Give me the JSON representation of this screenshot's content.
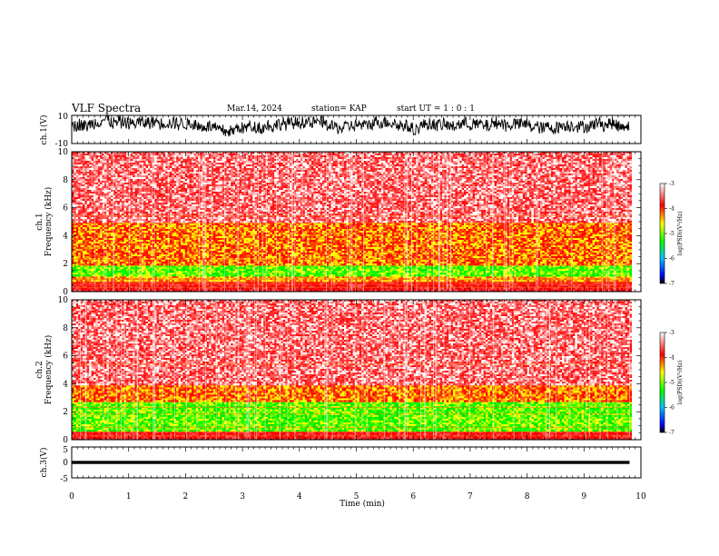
{
  "header": {
    "title": "VLF Spectra",
    "date": "Mar.14, 2024",
    "station": "station= KAP",
    "start": "start UT =  1 : 0  : 1"
  },
  "chart_data": [
    {
      "type": "line",
      "name": "ch1-waveform",
      "ylabel": "ch.1(V)",
      "ylim": [
        -10,
        10
      ],
      "yticks": [
        "10",
        "-10"
      ],
      "xlim": [
        0,
        10
      ],
      "x_extent_min": [
        0,
        9.8
      ],
      "signal_range": [
        -5,
        10
      ]
    },
    {
      "type": "heatmap",
      "name": "ch1-spectrogram",
      "ylabel": "ch.1\nFrequency (kHz)",
      "ylim": [
        0,
        10
      ],
      "yticks": [
        "0",
        "2",
        "4",
        "6",
        "8",
        "10"
      ],
      "xlim": [
        0,
        10
      ],
      "x_extent_min": [
        0,
        9.8
      ],
      "bands": [
        {
          "f_from": 0,
          "f_to": 0.8,
          "level": "red"
        },
        {
          "f_from": 0.8,
          "f_to": 1.1,
          "level": "yellow"
        },
        {
          "f_from": 1.1,
          "f_to": 2.0,
          "level": "green"
        },
        {
          "f_from": 2.0,
          "f_to": 5.0,
          "level": "yellow-red"
        },
        {
          "f_from": 5.0,
          "f_to": 10.0,
          "level": "red-white"
        }
      ],
      "colorbar": {
        "label": "log(PSD)(V²/Hz)",
        "ticks": [
          "-3",
          "-4",
          "-5",
          "-6",
          "-7"
        ],
        "range": [
          -7,
          -3
        ]
      }
    },
    {
      "type": "heatmap",
      "name": "ch2-spectrogram",
      "ylabel": "ch.2\nFrequency (kHz)",
      "ylim": [
        0,
        10
      ],
      "yticks": [
        "0",
        "2",
        "4",
        "6",
        "8",
        "10"
      ],
      "xlim": [
        0,
        10
      ],
      "x_extent_min": [
        0,
        9.8
      ],
      "bands": [
        {
          "f_from": 0,
          "f_to": 0.6,
          "level": "red"
        },
        {
          "f_from": 0.6,
          "f_to": 2.8,
          "level": "green"
        },
        {
          "f_from": 2.8,
          "f_to": 4.0,
          "level": "yellow-red"
        },
        {
          "f_from": 4.0,
          "f_to": 10.0,
          "level": "red-white"
        }
      ],
      "colorbar": {
        "label": "log(PSD)(V²/Hz)",
        "ticks": [
          "-3",
          "-4",
          "-5",
          "-6",
          "-7"
        ],
        "range": [
          -7,
          -3
        ]
      }
    },
    {
      "type": "line",
      "name": "ch3-waveform",
      "ylabel": "ch.3(V)",
      "ylim": [
        -5,
        5
      ],
      "yticks": [
        "5",
        "0",
        "-5"
      ],
      "xlim": [
        0,
        10
      ],
      "x_extent_min": [
        0,
        9.8
      ],
      "signal_range": [
        -0.5,
        0.5
      ]
    }
  ],
  "xaxis": {
    "label": "Time (min)",
    "ticks": [
      "0",
      "1",
      "2",
      "3",
      "4",
      "5",
      "6",
      "7",
      "8",
      "9",
      "10"
    ]
  },
  "colors": {
    "spectrogram": [
      "#ffffff",
      "#ff2020",
      "#ffff00",
      "#00ff00",
      "#0000ff",
      "#000000"
    ]
  }
}
